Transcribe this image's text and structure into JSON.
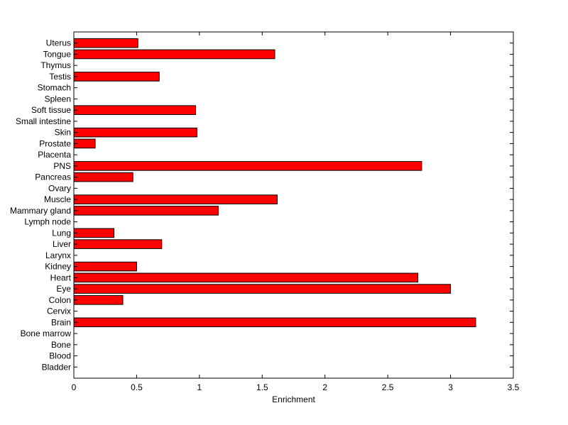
{
  "chart_data": {
    "type": "bar",
    "orientation": "horizontal",
    "categories": [
      "Bladder",
      "Blood",
      "Bone",
      "Bone marrow",
      "Brain",
      "Cervix",
      "Colon",
      "Eye",
      "Heart",
      "Kidney",
      "Larynx",
      "Liver",
      "Lung",
      "Lymph node",
      "Mammary gland",
      "Muscle",
      "Ovary",
      "Pancreas",
      "PNS",
      "Placenta",
      "Prostate",
      "Skin",
      "Small intestine",
      "Soft tissue",
      "Spleen",
      "Stomach",
      "Testis",
      "Thymus",
      "Tongue",
      "Uterus"
    ],
    "values": [
      0,
      0,
      0,
      0,
      3.2,
      0,
      0.39,
      3.0,
      2.74,
      0.5,
      0,
      0.7,
      0.32,
      0,
      1.15,
      1.62,
      0,
      0.47,
      2.77,
      0,
      0.17,
      0.98,
      0,
      0.97,
      0,
      0,
      0.68,
      0,
      1.6,
      0.51
    ],
    "title": "",
    "xlabel": "Enrichment",
    "ylabel": "",
    "xlim": [
      0,
      3.5
    ],
    "xticks": [
      "0",
      "0.5",
      "1",
      "1.5",
      "2",
      "2.5",
      "3",
      "3.5"
    ],
    "bar_color": "#ff0000",
    "grid": false,
    "legend": "none"
  }
}
